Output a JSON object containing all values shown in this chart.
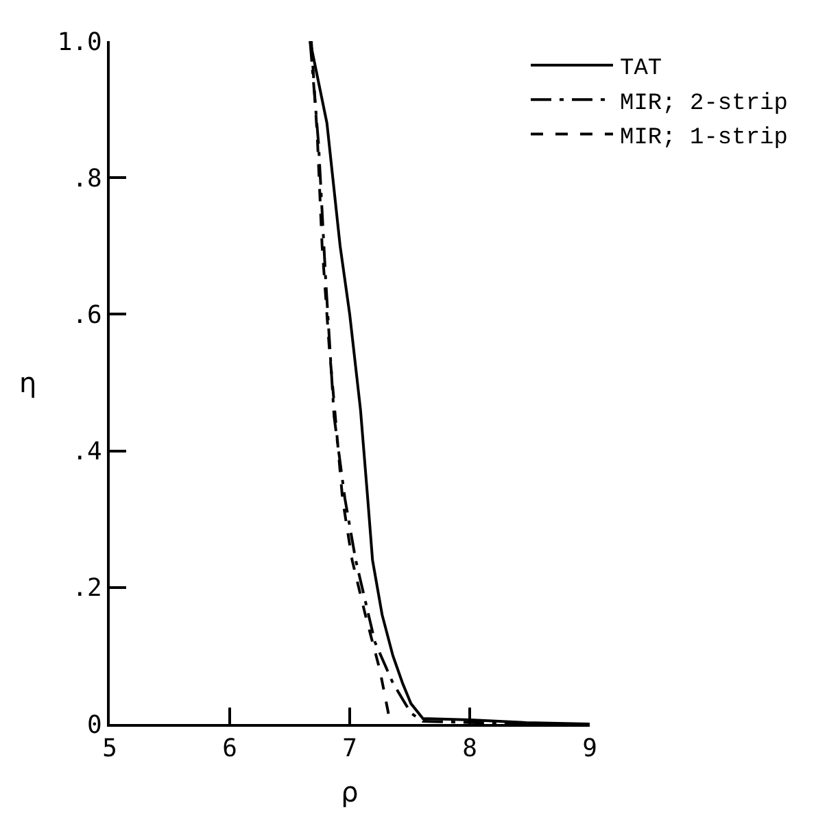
{
  "chart_data": {
    "type": "line",
    "xlabel": "ρ",
    "ylabel": "η",
    "xlim": [
      5,
      9
    ],
    "ylim": [
      0,
      1
    ],
    "xticks": [
      5,
      6,
      7,
      8,
      9
    ],
    "yticks": [
      {
        "value": 0,
        "label": "0"
      },
      {
        "value": 0.2,
        "label": ".2"
      },
      {
        "value": 0.4,
        "label": ".4"
      },
      {
        "value": 0.6,
        "label": ".6"
      },
      {
        "value": 0.8,
        "label": ".8"
      },
      {
        "value": 1,
        "label": "1.0"
      }
    ],
    "legend": "top right",
    "marker": "none",
    "series": [
      {
        "name": "TAT",
        "color": "#000000",
        "line_style": "solid",
        "x": [
          6.67,
          6.81,
          6.92,
          7.0,
          7.09,
          7.15,
          7.19,
          7.27,
          7.36,
          7.44,
          7.51,
          7.61,
          8.01,
          8.47,
          9.0
        ],
        "values": [
          1.0,
          0.88,
          0.7,
          0.6,
          0.46,
          0.33,
          0.24,
          0.16,
          0.1,
          0.06,
          0.03,
          0.008,
          0.006,
          0.002,
          0.0
        ]
      },
      {
        "name": "MIR; 2-strip",
        "color": "#000000",
        "line_style": "dashdot",
        "x": [
          6.67,
          6.74,
          6.8,
          6.87,
          6.96,
          7.05,
          7.09,
          7.21,
          7.36,
          7.51,
          7.61,
          8.5
        ],
        "values": [
          1.0,
          0.85,
          0.65,
          0.45,
          0.33,
          0.24,
          0.21,
          0.12,
          0.06,
          0.016,
          0.004,
          0.0
        ]
      },
      {
        "name": "MIR; 1-strip",
        "color": "#000000",
        "line_style": "dashed",
        "x": [
          6.68,
          6.73,
          6.77,
          6.83,
          6.89,
          6.94,
          7.02,
          7.13,
          7.25,
          7.34
        ],
        "values": [
          1.0,
          0.86,
          0.7,
          0.55,
          0.43,
          0.33,
          0.24,
          0.16,
          0.08,
          0.0
        ]
      }
    ]
  }
}
